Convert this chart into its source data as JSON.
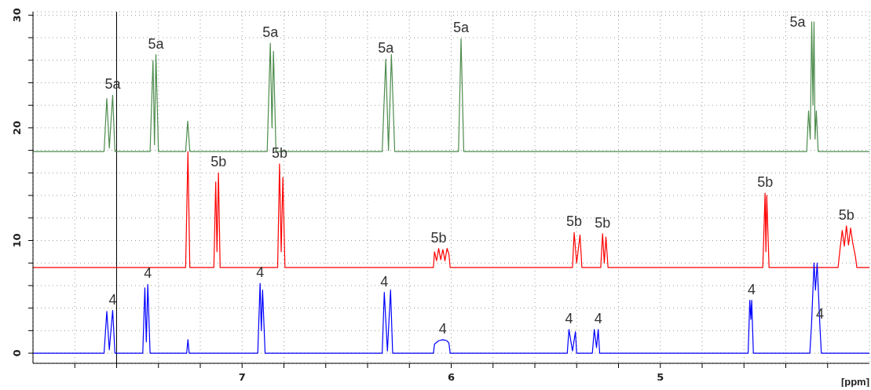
{
  "chart_data": {
    "type": "line",
    "xlabel": "[ppm]",
    "xlim": [
      8.0,
      4.0
    ],
    "xticks": [
      {
        "value": 7.8,
        "label": null
      },
      {
        "value": 7.6,
        "label": null
      },
      {
        "value": 7.4,
        "label": null
      },
      {
        "value": 7.2,
        "label": null
      },
      7,
      {
        "value": 6.8,
        "label": null
      },
      {
        "value": 6.6,
        "label": null
      },
      {
        "value": 6.4,
        "label": null
      },
      {
        "value": 6.2,
        "label": null
      },
      6,
      {
        "value": 5.8,
        "label": null
      },
      {
        "value": 5.6,
        "label": null
      },
      {
        "value": 5.4,
        "label": null
      },
      {
        "value": 5.2,
        "label": null
      },
      5,
      {
        "value": 4.8,
        "label": null
      },
      {
        "value": 4.6,
        "label": null
      },
      {
        "value": 4.4,
        "label": null
      },
      {
        "value": 4.2,
        "label": null
      }
    ],
    "ylim": [
      -0.9,
      30.3
    ],
    "yticks": [
      0,
      {
        "value": 2,
        "label": null
      },
      {
        "value": 4,
        "label": null
      },
      {
        "value": 6,
        "label": null
      },
      {
        "value": 8,
        "label": null
      },
      10,
      {
        "value": 12,
        "label": null
      },
      {
        "value": 14,
        "label": null
      },
      {
        "value": 16,
        "label": null
      },
      {
        "value": 18,
        "label": null
      },
      20,
      {
        "value": 22,
        "label": null
      },
      {
        "value": 24,
        "label": null
      },
      {
        "value": 26,
        "label": null
      },
      {
        "value": 28,
        "label": null
      },
      30
    ],
    "grid": true,
    "marker": "none",
    "line_style": "solid",
    "ref_lines": [
      {
        "axis": "x",
        "value": 7.6,
        "label": null,
        "color": "#000000",
        "line_style": "solid"
      }
    ],
    "series": [
      {
        "color": "#4e8c4e",
        "x": [
          8.0,
          7.66,
          7.647,
          7.635,
          7.619,
          7.608,
          7.44,
          7.426,
          7.419,
          7.412,
          7.4,
          7.27,
          7.26,
          7.25,
          6.88,
          6.865,
          6.857,
          6.85,
          6.838,
          6.33,
          6.313,
          6.3,
          6.286,
          6.27,
          5.965,
          5.953,
          5.94,
          4.3,
          4.291,
          4.283,
          4.276,
          4.27,
          4.265,
          4.26,
          4.254,
          4.245,
          4.0
        ],
        "values": [
          17.9,
          17.9,
          22.6,
          18.2,
          22.9,
          17.9,
          17.9,
          26.0,
          18.5,
          26.5,
          17.9,
          17.9,
          20.6,
          17.9,
          17.9,
          27.5,
          20.0,
          26.8,
          17.9,
          17.9,
          26.1,
          18.0,
          26.5,
          17.9,
          17.9,
          27.9,
          17.9,
          17.9,
          21.5,
          19.0,
          29.4,
          22.0,
          29.4,
          19.0,
          21.5,
          17.9,
          17.9
        ]
      },
      {
        "color": "#ff0000",
        "x": [
          8.0,
          7.27,
          7.262,
          7.259,
          7.25,
          7.135,
          7.126,
          7.12,
          7.113,
          7.105,
          6.83,
          6.821,
          6.813,
          6.805,
          6.795,
          6.085,
          6.08,
          6.07,
          6.06,
          6.05,
          6.04,
          6.03,
          6.02,
          6.011,
          6.005,
          5.42,
          5.412,
          5.4,
          5.384,
          5.375,
          5.285,
          5.276,
          5.268,
          5.26,
          5.25,
          4.51,
          4.499,
          4.495,
          4.491,
          4.48,
          4.15,
          4.142,
          4.13,
          4.12,
          4.11,
          4.1,
          4.09,
          4.08,
          4.067,
          4.06,
          4.0
        ],
        "values": [
          7.6,
          7.6,
          15.1,
          17.9,
          7.6,
          7.6,
          15.2,
          9.0,
          16.0,
          7.6,
          7.6,
          16.8,
          9.0,
          15.6,
          7.6,
          7.6,
          9.0,
          8.2,
          9.3,
          8.3,
          9.2,
          8.2,
          9.3,
          8.8,
          7.6,
          7.6,
          10.7,
          8.0,
          10.5,
          7.6,
          7.6,
          10.6,
          8.0,
          10.3,
          7.6,
          7.6,
          14.2,
          9.0,
          14.0,
          7.6,
          7.6,
          9.0,
          10.9,
          9.5,
          11.3,
          9.6,
          11.1,
          9.8,
          8.6,
          7.6,
          7.6
        ]
      },
      {
        "color": "#0000ff",
        "x": [
          8.0,
          7.66,
          7.647,
          7.635,
          7.619,
          7.608,
          7.475,
          7.465,
          7.458,
          7.451,
          7.44,
          7.265,
          7.259,
          7.253,
          6.925,
          6.914,
          6.908,
          6.902,
          6.89,
          6.33,
          6.32,
          6.305,
          6.29,
          6.28,
          6.085,
          6.08,
          6.06,
          6.04,
          6.02,
          6.011,
          6.005,
          5.445,
          5.437,
          5.42,
          5.406,
          5.4,
          5.325,
          5.316,
          5.305,
          5.297,
          5.29,
          4.58,
          4.572,
          4.567,
          4.563,
          4.555,
          4.285,
          4.277,
          4.265,
          4.258,
          4.25,
          4.237,
          4.23,
          4.0
        ],
        "values": [
          0,
          0,
          3.7,
          0.3,
          3.8,
          0,
          0,
          5.8,
          1.0,
          6.1,
          0,
          0,
          1.2,
          0,
          0,
          6.2,
          2.0,
          5.6,
          0,
          0,
          5.4,
          0.2,
          5.6,
          0,
          0,
          0.8,
          1.1,
          1.2,
          1.1,
          0.9,
          0,
          0,
          2.1,
          0.2,
          1.9,
          0,
          0,
          2.1,
          0.5,
          2.1,
          0,
          0,
          4.7,
          3.0,
          4.7,
          0,
          0,
          2.5,
          8.0,
          5.6,
          8.0,
          2.5,
          0,
          0
        ]
      }
    ],
    "annotations": [
      {
        "text": "5a",
        "x": 7.619,
        "y": 22.9
      },
      {
        "text": "5a",
        "x": 7.412,
        "y": 26.5
      },
      {
        "text": "5a",
        "x": 6.865,
        "y": 27.5
      },
      {
        "text": "5a",
        "x": 6.313,
        "y": 26.1
      },
      {
        "text": "5a",
        "x": 5.953,
        "y": 27.9
      },
      {
        "text": "5a",
        "x": 4.276,
        "y": 29.4
      },
      {
        "text": "5b",
        "x": 7.113,
        "y": 16.0
      },
      {
        "text": "5b",
        "x": 6.821,
        "y": 16.8
      },
      {
        "text": "5b",
        "x": 6.06,
        "y": 9.3
      },
      {
        "text": "5b",
        "x": 5.412,
        "y": 10.7
      },
      {
        "text": "5b",
        "x": 5.276,
        "y": 10.6
      },
      {
        "text": "5b",
        "x": 4.499,
        "y": 14.2
      },
      {
        "text": "5b",
        "x": 4.11,
        "y": 11.3
      },
      {
        "text": "4",
        "x": 7.619,
        "y": 3.8
      },
      {
        "text": "4",
        "x": 7.451,
        "y": 6.1
      },
      {
        "text": "4",
        "x": 6.914,
        "y": 6.2
      },
      {
        "text": "4",
        "x": 6.32,
        "y": 5.4
      },
      {
        "text": "4",
        "x": 6.04,
        "y": 1.2
      },
      {
        "text": "4",
        "x": 5.437,
        "y": 2.1
      },
      {
        "text": "4",
        "x": 5.297,
        "y": 2.1
      },
      {
        "text": "4",
        "x": 4.563,
        "y": 4.7
      },
      {
        "text": "4",
        "x": 4.237,
        "y": 2.5
      }
    ]
  }
}
